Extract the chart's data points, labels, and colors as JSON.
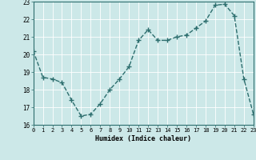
{
  "x": [
    0,
    1,
    2,
    3,
    4,
    5,
    6,
    7,
    8,
    9,
    10,
    11,
    12,
    13,
    14,
    15,
    16,
    17,
    18,
    19,
    20,
    21,
    22,
    23
  ],
  "y": [
    20.2,
    18.7,
    18.6,
    18.4,
    17.4,
    16.5,
    16.6,
    17.2,
    18.0,
    18.6,
    19.3,
    20.8,
    21.4,
    20.8,
    20.8,
    21.0,
    21.1,
    21.5,
    21.9,
    22.8,
    22.85,
    22.2,
    18.6,
    16.6
  ],
  "xlabel": "Humidex (Indice chaleur)",
  "ylim": [
    16,
    23
  ],
  "xlim": [
    0,
    23
  ],
  "yticks": [
    16,
    17,
    18,
    19,
    20,
    21,
    22,
    23
  ],
  "xticks": [
    0,
    1,
    2,
    3,
    4,
    5,
    6,
    7,
    8,
    9,
    10,
    11,
    12,
    13,
    14,
    15,
    16,
    17,
    18,
    19,
    20,
    21,
    22,
    23
  ],
  "line_color": "#2d6e6e",
  "marker": "+",
  "bg_color": "#cce8e8",
  "grid_color": "#b0d8d8",
  "marker_size": 4,
  "line_width": 1.0
}
